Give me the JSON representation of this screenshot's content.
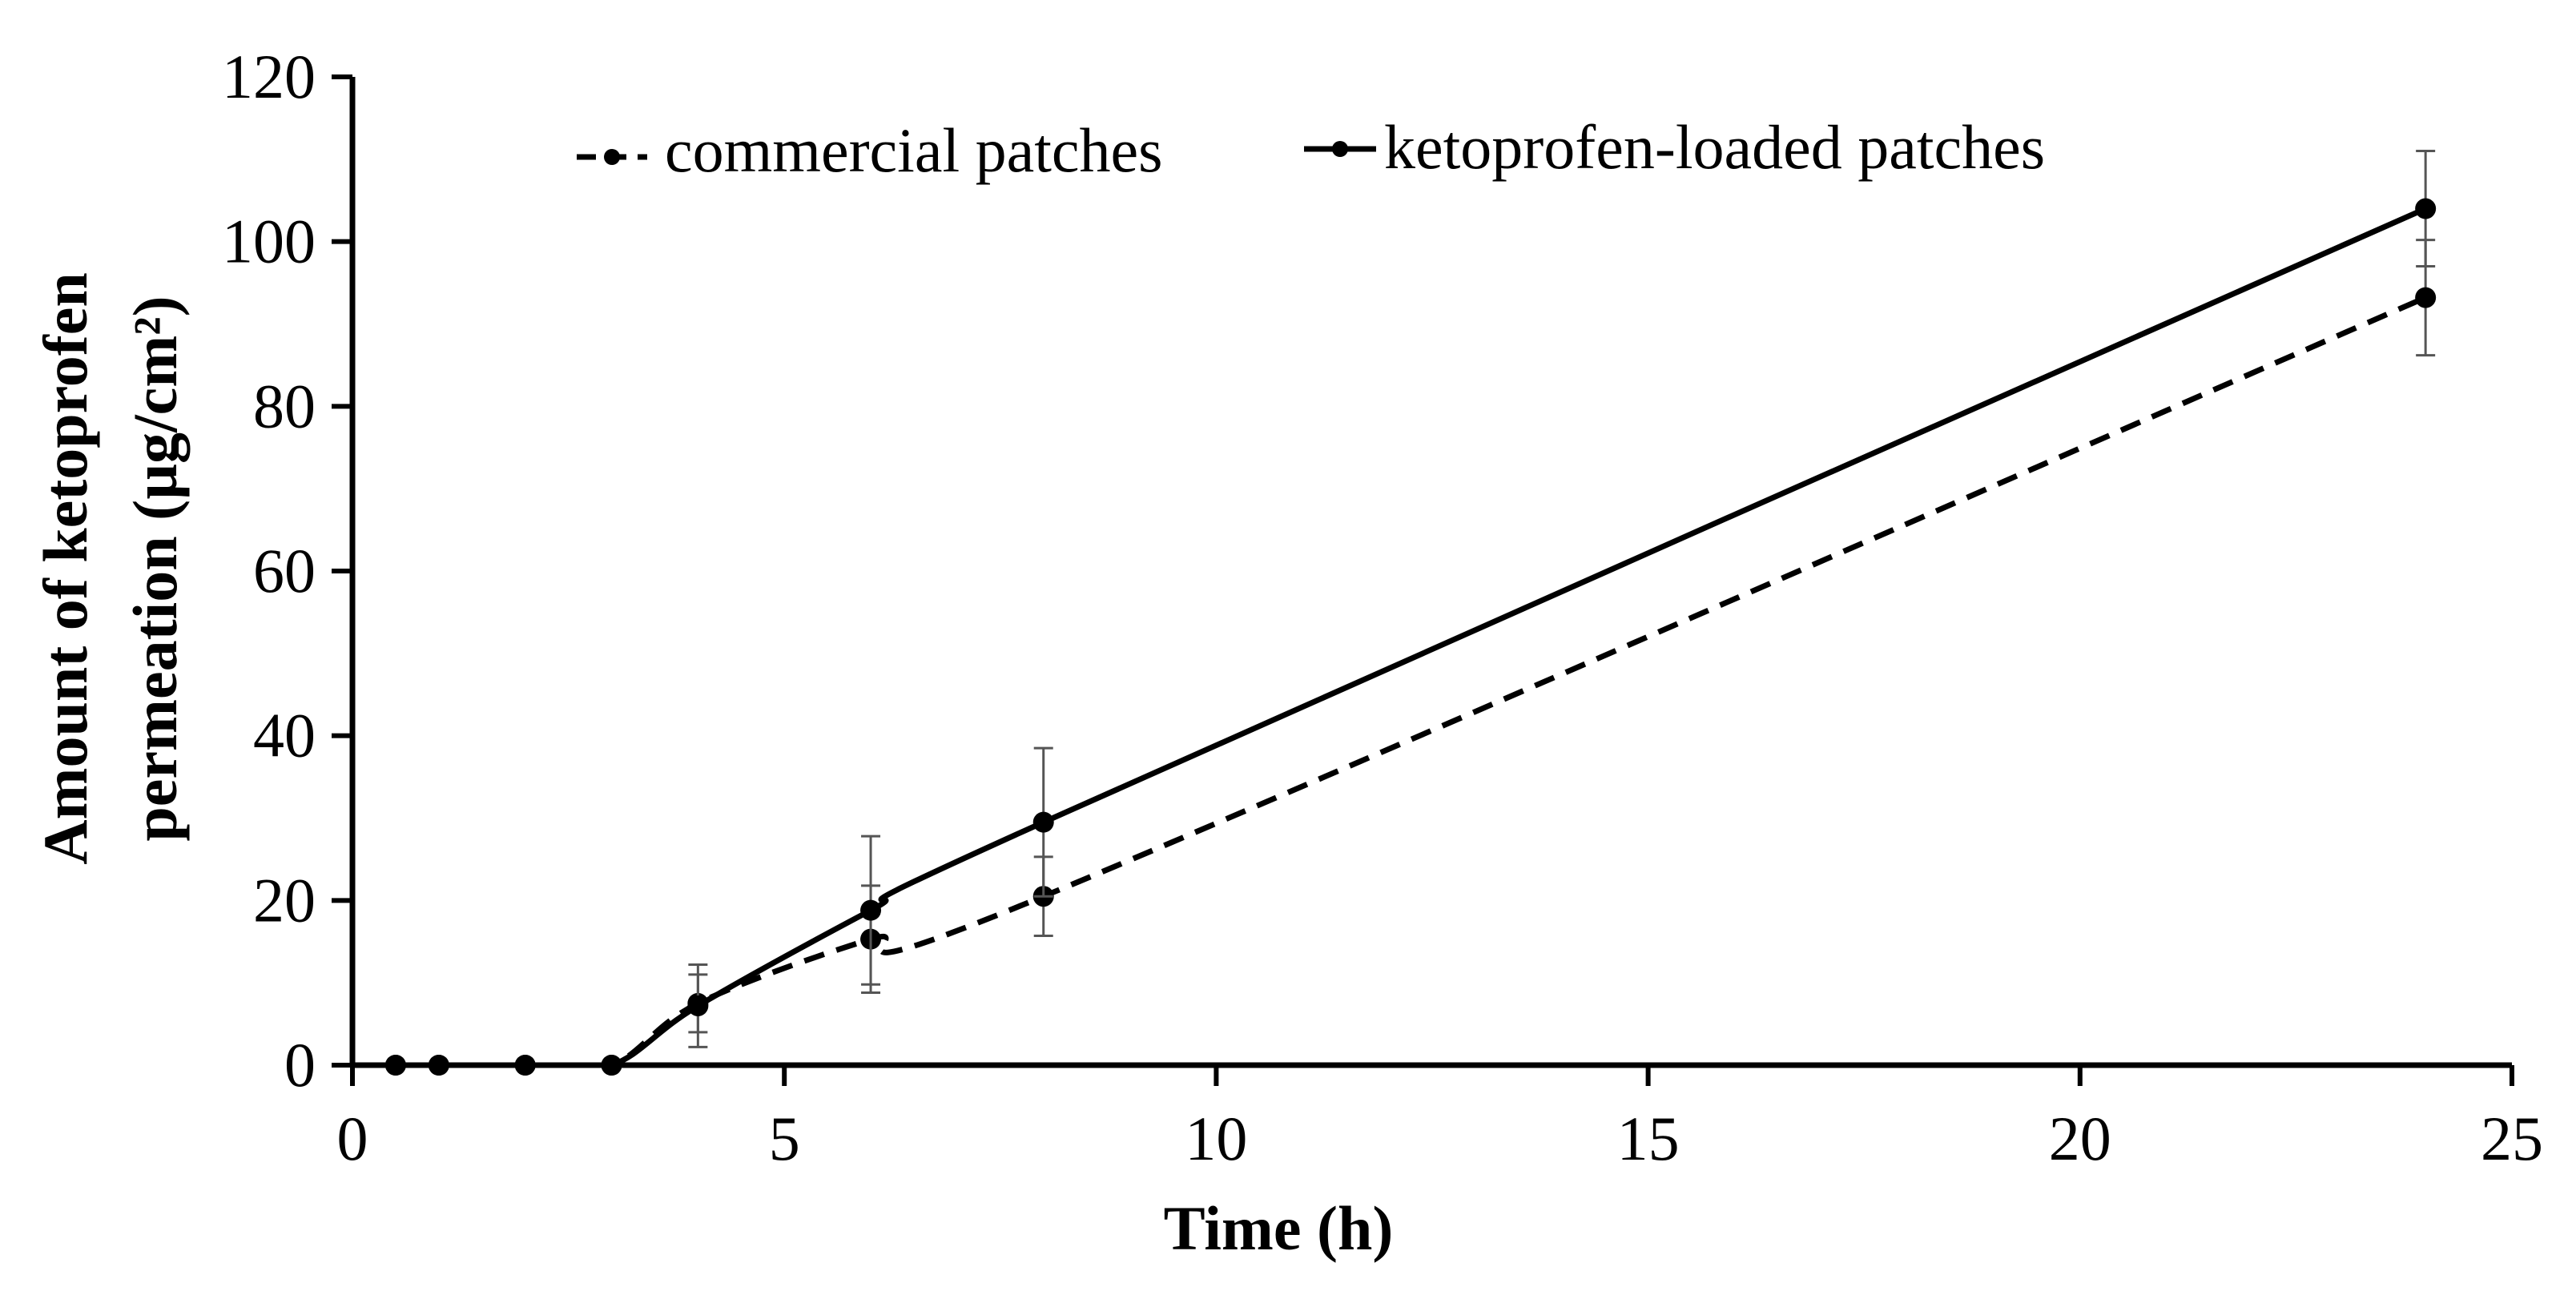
{
  "chart_data": {
    "type": "line",
    "xlabel": "Time (h)",
    "ylabel_line1": "Amount of ketoprofen",
    "ylabel_line2": "permeation (µg/cm²)",
    "xlim": [
      0,
      25
    ],
    "ylim": [
      0,
      120
    ],
    "xticks": [
      "0",
      "5",
      "10",
      "15",
      "20",
      "25"
    ],
    "yticks": [
      "0",
      "20",
      "40",
      "60",
      "80",
      "100",
      "120"
    ],
    "grid": false,
    "legend_position": "top-center",
    "series": [
      {
        "name": "commercial patches",
        "style": "dashed",
        "color": "#000000",
        "x": [
          0.5,
          1,
          2,
          3,
          4,
          6,
          8,
          24
        ],
        "y": [
          0,
          0,
          0,
          0,
          7.5,
          15.3,
          20.5,
          93.2
        ],
        "err": [
          0,
          0,
          0,
          0,
          3.5,
          6.5,
          4.8,
          7.0
        ]
      },
      {
        "name": "ketoprofen-loaded patches",
        "style": "solid",
        "color": "#000000",
        "x": [
          0.5,
          1,
          2,
          3,
          4,
          6,
          8,
          24
        ],
        "y": [
          0,
          0,
          0,
          0,
          7.2,
          18.8,
          29.5,
          104.0
        ],
        "err": [
          0,
          0,
          0,
          0,
          5.0,
          9.0,
          9.0,
          7.0
        ]
      }
    ]
  }
}
